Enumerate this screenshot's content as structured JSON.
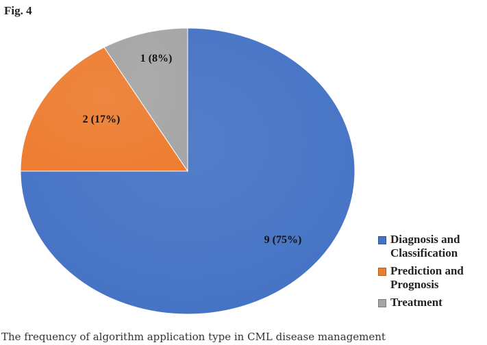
{
  "figure_label": "Fig. 4",
  "caption": "The frequency of algorithm application type in CML disease management",
  "colors": {
    "diagnosis": "#4472c4",
    "prediction": "#ed7d31",
    "treatment": "#a5a5a5"
  },
  "chart_data": {
    "type": "pie",
    "title": "",
    "slices": [
      {
        "name": "Diagnosis and Classification",
        "legend_lines": [
          "Diagnosis and",
          "Classification"
        ],
        "value": 9,
        "percent": 75,
        "label": "9 (75%)",
        "color": "#4472c4"
      },
      {
        "name": "Prediction and Prognosis",
        "legend_lines": [
          "Prediction and",
          "Prognosis"
        ],
        "value": 2,
        "percent": 17,
        "label": "2 (17%)",
        "color": "#ed7d31"
      },
      {
        "name": "Treatment",
        "legend_lines": [
          "Treatment"
        ],
        "value": 1,
        "percent": 8,
        "label": "1 (8%)",
        "color": "#a5a5a5"
      }
    ],
    "legend_placement": "bottom-right"
  }
}
